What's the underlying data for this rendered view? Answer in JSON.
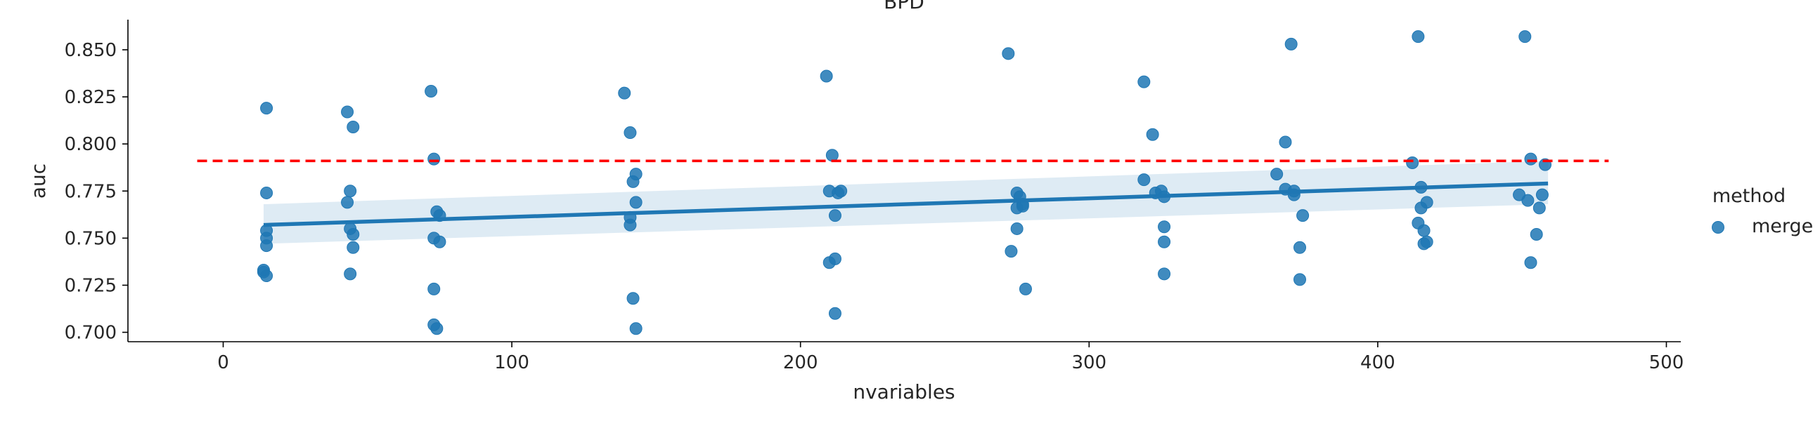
{
  "chart_data": {
    "type": "scatter",
    "title": "BPD",
    "xlabel": "nvariables",
    "ylabel": "auc",
    "xlim": [
      -33,
      505
    ],
    "ylim": [
      0.695,
      0.866
    ],
    "x_ticks": [
      0,
      100,
      200,
      300,
      400,
      500
    ],
    "y_ticks": [
      0.7,
      0.725,
      0.75,
      0.775,
      0.8,
      0.825,
      0.85
    ],
    "grid": false,
    "legend": {
      "title": "method",
      "entries": [
        "merge"
      ],
      "placement": "right"
    },
    "colors": {
      "series": "#1f77b4",
      "reference_line": "#ff0000"
    },
    "series": [
      {
        "name": "merge",
        "points": [
          {
            "x": 15,
            "y": 0.819
          },
          {
            "x": 15,
            "y": 0.774
          },
          {
            "x": 15,
            "y": 0.754
          },
          {
            "x": 15,
            "y": 0.75
          },
          {
            "x": 15,
            "y": 0.746
          },
          {
            "x": 14,
            "y": 0.733
          },
          {
            "x": 14,
            "y": 0.732
          },
          {
            "x": 15,
            "y": 0.73
          },
          {
            "x": 43,
            "y": 0.817
          },
          {
            "x": 45,
            "y": 0.809
          },
          {
            "x": 44,
            "y": 0.775
          },
          {
            "x": 43,
            "y": 0.769
          },
          {
            "x": 44,
            "y": 0.755
          },
          {
            "x": 45,
            "y": 0.752
          },
          {
            "x": 45,
            "y": 0.745
          },
          {
            "x": 44,
            "y": 0.731
          },
          {
            "x": 72,
            "y": 0.828
          },
          {
            "x": 73,
            "y": 0.792
          },
          {
            "x": 74,
            "y": 0.764
          },
          {
            "x": 75,
            "y": 0.762
          },
          {
            "x": 73,
            "y": 0.75
          },
          {
            "x": 75,
            "y": 0.748
          },
          {
            "x": 73,
            "y": 0.723
          },
          {
            "x": 73,
            "y": 0.704
          },
          {
            "x": 74,
            "y": 0.702
          },
          {
            "x": 139,
            "y": 0.827
          },
          {
            "x": 141,
            "y": 0.806
          },
          {
            "x": 143,
            "y": 0.784
          },
          {
            "x": 142,
            "y": 0.78
          },
          {
            "x": 143,
            "y": 0.769
          },
          {
            "x": 141,
            "y": 0.761
          },
          {
            "x": 141,
            "y": 0.757
          },
          {
            "x": 142,
            "y": 0.718
          },
          {
            "x": 143,
            "y": 0.702
          },
          {
            "x": 209,
            "y": 0.836
          },
          {
            "x": 211,
            "y": 0.794
          },
          {
            "x": 210,
            "y": 0.775
          },
          {
            "x": 213,
            "y": 0.774
          },
          {
            "x": 214,
            "y": 0.775
          },
          {
            "x": 212,
            "y": 0.762
          },
          {
            "x": 212,
            "y": 0.739
          },
          {
            "x": 210,
            "y": 0.737
          },
          {
            "x": 212,
            "y": 0.71
          },
          {
            "x": 272,
            "y": 0.848
          },
          {
            "x": 275,
            "y": 0.774
          },
          {
            "x": 276,
            "y": 0.772
          },
          {
            "x": 277,
            "y": 0.768
          },
          {
            "x": 275,
            "y": 0.766
          },
          {
            "x": 277,
            "y": 0.767
          },
          {
            "x": 275,
            "y": 0.755
          },
          {
            "x": 273,
            "y": 0.743
          },
          {
            "x": 278,
            "y": 0.723
          },
          {
            "x": 319,
            "y": 0.833
          },
          {
            "x": 322,
            "y": 0.805
          },
          {
            "x": 319,
            "y": 0.781
          },
          {
            "x": 325,
            "y": 0.775
          },
          {
            "x": 323,
            "y": 0.774
          },
          {
            "x": 326,
            "y": 0.772
          },
          {
            "x": 326,
            "y": 0.756
          },
          {
            "x": 326,
            "y": 0.748
          },
          {
            "x": 326,
            "y": 0.731
          },
          {
            "x": 370,
            "y": 0.853
          },
          {
            "x": 368,
            "y": 0.801
          },
          {
            "x": 365,
            "y": 0.784
          },
          {
            "x": 368,
            "y": 0.776
          },
          {
            "x": 371,
            "y": 0.775
          },
          {
            "x": 371,
            "y": 0.773
          },
          {
            "x": 374,
            "y": 0.762
          },
          {
            "x": 373,
            "y": 0.745
          },
          {
            "x": 373,
            "y": 0.728
          },
          {
            "x": 414,
            "y": 0.857
          },
          {
            "x": 412,
            "y": 0.79
          },
          {
            "x": 415,
            "y": 0.777
          },
          {
            "x": 417,
            "y": 0.769
          },
          {
            "x": 415,
            "y": 0.766
          },
          {
            "x": 414,
            "y": 0.758
          },
          {
            "x": 416,
            "y": 0.754
          },
          {
            "x": 417,
            "y": 0.748
          },
          {
            "x": 416,
            "y": 0.747
          },
          {
            "x": 451,
            "y": 0.857
          },
          {
            "x": 453,
            "y": 0.792
          },
          {
            "x": 458,
            "y": 0.789
          },
          {
            "x": 449,
            "y": 0.773
          },
          {
            "x": 457,
            "y": 0.773
          },
          {
            "x": 452,
            "y": 0.77
          },
          {
            "x": 456,
            "y": 0.766
          },
          {
            "x": 455,
            "y": 0.752
          },
          {
            "x": 453,
            "y": 0.737
          }
        ]
      }
    ],
    "regression": {
      "x_range": [
        14,
        459
      ],
      "y_start": 0.757,
      "y_end": 0.779,
      "ci_start": [
        0.747,
        0.768
      ],
      "ci_end": [
        0.768,
        0.791
      ]
    },
    "reference_line": {
      "y": 0.791,
      "x_range": [
        -9,
        480
      ],
      "style": "dashed"
    }
  }
}
